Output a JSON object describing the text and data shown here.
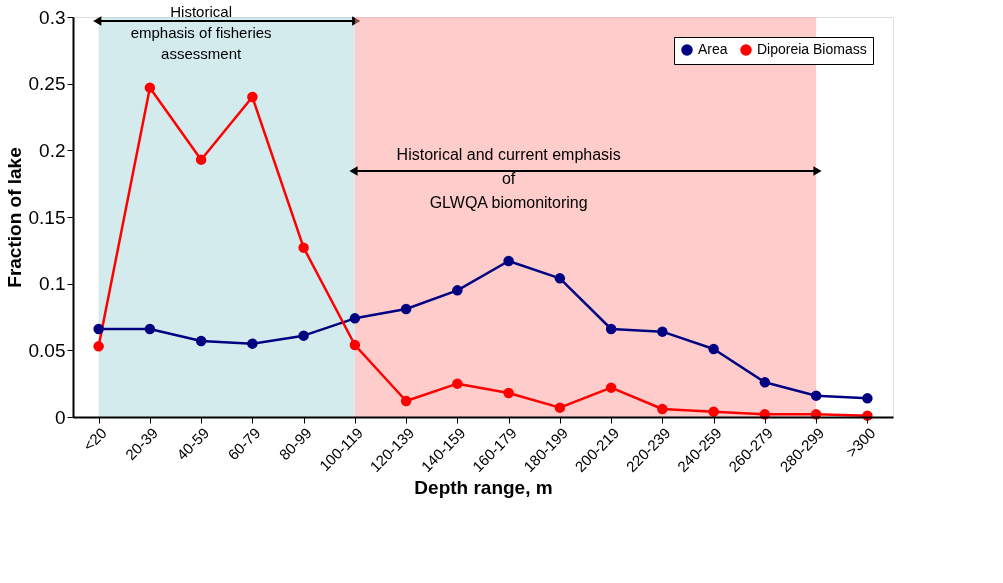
{
  "chart_data": {
    "type": "line",
    "xlabel": "Depth range, m",
    "ylabel": "Fraction of lake",
    "categories": [
      "<20",
      "20-39",
      "40-59",
      "60-79",
      "80-99",
      "100-119",
      "120-139",
      "140-159",
      "160-179",
      "180-199",
      "200-219",
      "220-239",
      "240-259",
      "260-279",
      "280-299",
      ">300"
    ],
    "series": [
      {
        "name": "Area",
        "color": "#000080",
        "values": [
          0.066,
          0.066,
          0.057,
          0.055,
          0.061,
          0.074,
          0.081,
          0.095,
          0.117,
          0.104,
          0.066,
          0.064,
          0.051,
          0.026,
          0.016,
          0.014
        ]
      },
      {
        "name": "Diporeia Biomass",
        "color": "#ff0000",
        "values": [
          0.053,
          0.247,
          0.193,
          0.24,
          0.127,
          0.054,
          0.012,
          0.025,
          0.018,
          0.007,
          0.022,
          0.006,
          0.004,
          0.002,
          0.002,
          0.001
        ]
      }
    ],
    "bands": [
      {
        "axis": "x",
        "from": "<20",
        "to": "100-119",
        "label": "Historical\nemphasis of fisheries\nassessment",
        "color": "#9fd3d6"
      },
      {
        "axis": "x",
        "from": "100-119",
        "to": "280-299",
        "label": "Historical and current emphasis\nof\nGLWQA biomonitoring",
        "color": "#ff9999"
      }
    ],
    "ylim": [
      0,
      0.3
    ],
    "yticks": [
      0,
      0.05,
      0.1,
      0.15,
      0.2,
      0.25,
      0.3
    ],
    "marker": "circle",
    "line_style": "solid",
    "grid": false,
    "legend": "top right"
  }
}
